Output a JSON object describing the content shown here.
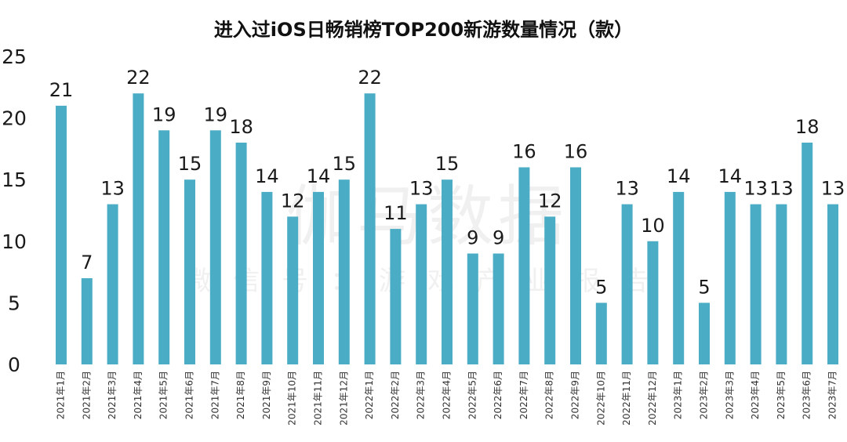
{
  "watermark": {
    "main": "伽马数据",
    "sub": "微信号：游戏产业报告"
  },
  "chart_data": {
    "type": "bar",
    "title": "进入过iOS日畅销榜TOP200新游数量情况（款）",
    "xlabel": "",
    "ylabel": "",
    "ylim": [
      0,
      25
    ],
    "yticks": [
      0,
      5,
      10,
      15,
      20,
      25
    ],
    "grid": false,
    "legend": "none",
    "bar_color": "#4aacc5",
    "categories": [
      "2021年1月",
      "2021年2月",
      "2021年3月",
      "2021年4月",
      "2021年5月",
      "2021年6月",
      "2021年7月",
      "2021年8月",
      "2021年9月",
      "2021年10月",
      "2021年11月",
      "2021年12月",
      "2022年1月",
      "2022年2月",
      "2022年3月",
      "2022年4月",
      "2022年5月",
      "2022年6月",
      "2022年7月",
      "2022年8月",
      "2022年9月",
      "2022年10月",
      "2022年11月",
      "2022年12月",
      "2023年1月",
      "2023年2月",
      "2023年3月",
      "2023年4月",
      "2023年5月",
      "2023年6月",
      "2023年7月"
    ],
    "values": [
      21,
      7,
      13,
      22,
      19,
      15,
      19,
      18,
      14,
      12,
      14,
      15,
      22,
      11,
      13,
      15,
      9,
      9,
      16,
      12,
      16,
      5,
      13,
      10,
      14,
      5,
      14,
      13,
      13,
      18,
      13
    ]
  }
}
